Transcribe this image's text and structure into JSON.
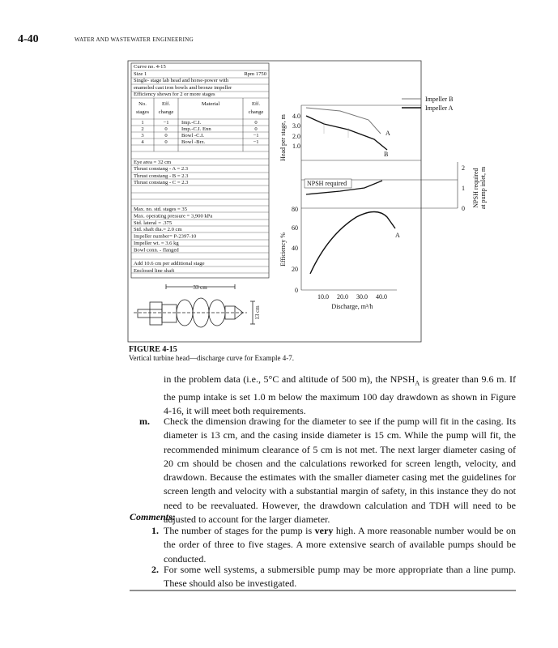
{
  "header": {
    "page_number": "4-40",
    "running_title": "WATER AND WASTEWATER ENGINEERING"
  },
  "figure": {
    "info": {
      "curve_no": "Curve no. 4-15",
      "size": "Size 1",
      "rpm": "Rpm 1750",
      "description": [
        "Single- stage lab head and horse-power with",
        "enameled cast iron bowls and bronze impeller",
        "Efficiency shown for 2 or more stages"
      ],
      "table": {
        "header": [
          "No.",
          "Eff.",
          "Material",
          "Eff."
        ],
        "header_second_line": [
          "stages",
          "change",
          "change"
        ],
        "rows": [
          [
            "1",
            "−1",
            "Imp.-C.I.",
            "0"
          ],
          [
            "2",
            "0",
            "Imp.-C.I. Enn",
            "0"
          ],
          [
            "3",
            "0",
            "Bowl -C.I.",
            "−1"
          ],
          [
            "4",
            "0",
            "Bowl -Brz.",
            "−1"
          ]
        ]
      },
      "thrust": [
        "Eye area = 32 cm",
        "Thrust constang - A = 2.3",
        "Thrust constang - B = 2.3",
        "Thrust constang - C = 2.3"
      ],
      "specs": [
        "Max. no. std. stages = 35",
        "Max. operating pressure = 3,900 kPa",
        "Std. lateral = .375",
        "Std. shaft dia.= 2.0 cm",
        "Impeller number= P-2397-10",
        "Impeller wt. = 3.6 kg",
        "Bowl conn. - flanged"
      ],
      "extra": [
        "Add 10.6 cm per additional stage",
        "Enclosed line shaft"
      ]
    },
    "drawing": {
      "width": "33 cm",
      "height": "13 cm"
    },
    "plot": {
      "legend": [
        "Impeller B",
        "Impeller A"
      ],
      "head_axis_label": "Head per stage, m",
      "head_ticks": [
        "4.0",
        "3.0",
        "2.0",
        "1.0"
      ],
      "curve_labels": {
        "a": "A",
        "b": "B",
        "efficiency_a": "A"
      },
      "npsh_label": "NPSH required",
      "npsh_axis_label": [
        "NPSH required",
        "at pump inlet, m"
      ],
      "npsh_ticks": [
        "2",
        "1",
        "0"
      ],
      "efficiency_axis_label": "Efficiency %",
      "efficiency_ticks": [
        "80",
        "60",
        "40",
        "20",
        "0"
      ],
      "x_ticks": [
        "10.0",
        "20.0",
        "30.0",
        "40.0"
      ],
      "x_axis_label": "Discharge, m³/h"
    },
    "label": "FIGURE 4-15",
    "caption": "Vertical turbine head—discharge curve for Example 4-7."
  },
  "body": {
    "paragraph": [
      "in the problem data (i.e., 5°C and altitude of 500 m), the NPSH",
      "A",
      " is greater than 9.6 m. If the pump intake is set 1.0 m below the maximum 100 day drawdown as shown in Figure 4-16, it will meet both requirements."
    ],
    "item_m": {
      "marker": "m.",
      "text": "Check the dimension drawing for the diameter to see if the pump will fit in the casing. Its diameter is 13 cm, and the casing inside diameter is 15 cm. While the pump will fit, the recommended minimum clearance of 5 cm is not met. The next larger diameter casing of 20 cm should be chosen and the calculations reworked for screen length, velocity, and drawdown. Because the estimates with the smaller diameter casing met the guidelines for screen length and velocity with a substantial margin of safety, in this instance they do not need to be reevaluated. However, the drawdown calculation and TDH will need to be adjusted to account for the larger diameter."
    }
  },
  "comments": {
    "heading": "Comments:",
    "items": [
      {
        "marker": "1.",
        "text": [
          "The number of stages for the pump is ",
          "very",
          " high. A more reasonable number would be on the order of three to five stages. A more extensive search of available pumps should be conducted."
        ]
      },
      {
        "marker": "2.",
        "text": [
          "For some well systems, a submersible pump may be more appropriate than a line pump. These should also be investigated."
        ]
      }
    ]
  }
}
